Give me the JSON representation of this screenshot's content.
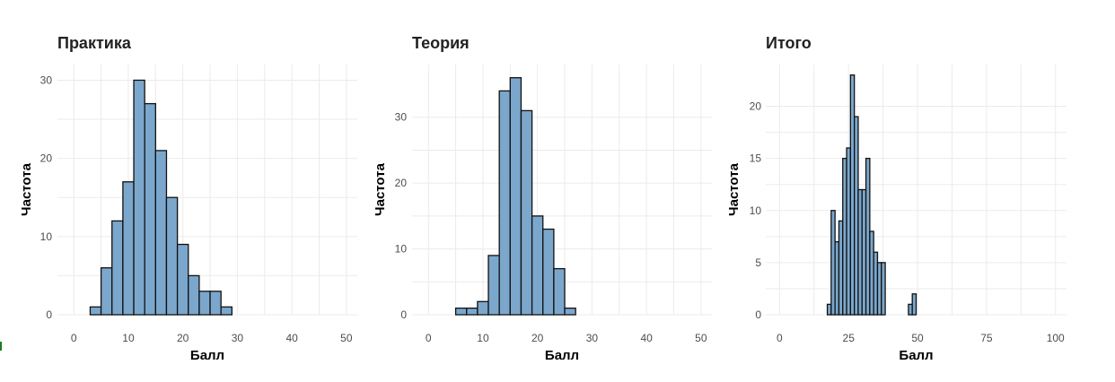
{
  "chart_data": [
    {
      "type": "bar",
      "title": "Практика",
      "xlabel": "Балл",
      "ylabel": "Частота",
      "xlim": [
        -3,
        52
      ],
      "ylim": [
        0,
        32
      ],
      "x_ticks": [
        0,
        10,
        20,
        30,
        40,
        50
      ],
      "y_ticks": [
        0,
        10,
        20,
        30
      ],
      "bin_width": 2,
      "bin_centers": [
        4,
        6,
        8,
        10,
        12,
        14,
        16,
        18,
        20,
        22,
        24,
        26,
        28
      ],
      "values": [
        1,
        6,
        12,
        17,
        30,
        27,
        21,
        15,
        9,
        5,
        3,
        3,
        1
      ],
      "grid": true,
      "fill_color": "#7ba7cc",
      "edge_color": "#111111"
    },
    {
      "type": "bar",
      "title": "Теория",
      "xlabel": "Балл",
      "ylabel": "Частота",
      "xlim": [
        -3,
        52
      ],
      "ylim": [
        0,
        38
      ],
      "x_ticks": [
        0,
        10,
        20,
        30,
        40,
        50
      ],
      "y_ticks": [
        0,
        10,
        20,
        30
      ],
      "bin_width": 2,
      "bin_centers": [
        6,
        8,
        10,
        12,
        14,
        16,
        18,
        20,
        22,
        24,
        26
      ],
      "values": [
        1,
        1,
        2,
        9,
        34,
        36,
        31,
        15,
        13,
        7,
        1
      ],
      "grid": true,
      "fill_color": "#7ba7cc",
      "edge_color": "#111111"
    },
    {
      "type": "bar",
      "title": "Итого",
      "xlabel": "Балл",
      "ylabel": "Частота",
      "xlim": [
        -5,
        104
      ],
      "ylim": [
        0,
        24
      ],
      "x_ticks": [
        0,
        25,
        50,
        75,
        100
      ],
      "y_ticks": [
        0,
        5,
        10,
        15,
        20
      ],
      "bin_width": 1.4,
      "bin_centers": [
        18,
        19.4,
        20.8,
        22.2,
        23.6,
        25,
        26.4,
        27.8,
        29.2,
        30.6,
        32,
        33.4,
        34.8,
        36.2,
        37.6,
        39,
        40.4,
        41.8,
        43.2,
        44.6,
        46,
        47.4,
        48.8,
        50.2
      ],
      "values": [
        1,
        10,
        7,
        9,
        15,
        16,
        23,
        19,
        12,
        12,
        15,
        8,
        6,
        5,
        5,
        0,
        0,
        0,
        0,
        0,
        0,
        1,
        2,
        0
      ],
      "grid": true,
      "fill_color": "#7ba7cc",
      "edge_color": "#111111"
    }
  ]
}
